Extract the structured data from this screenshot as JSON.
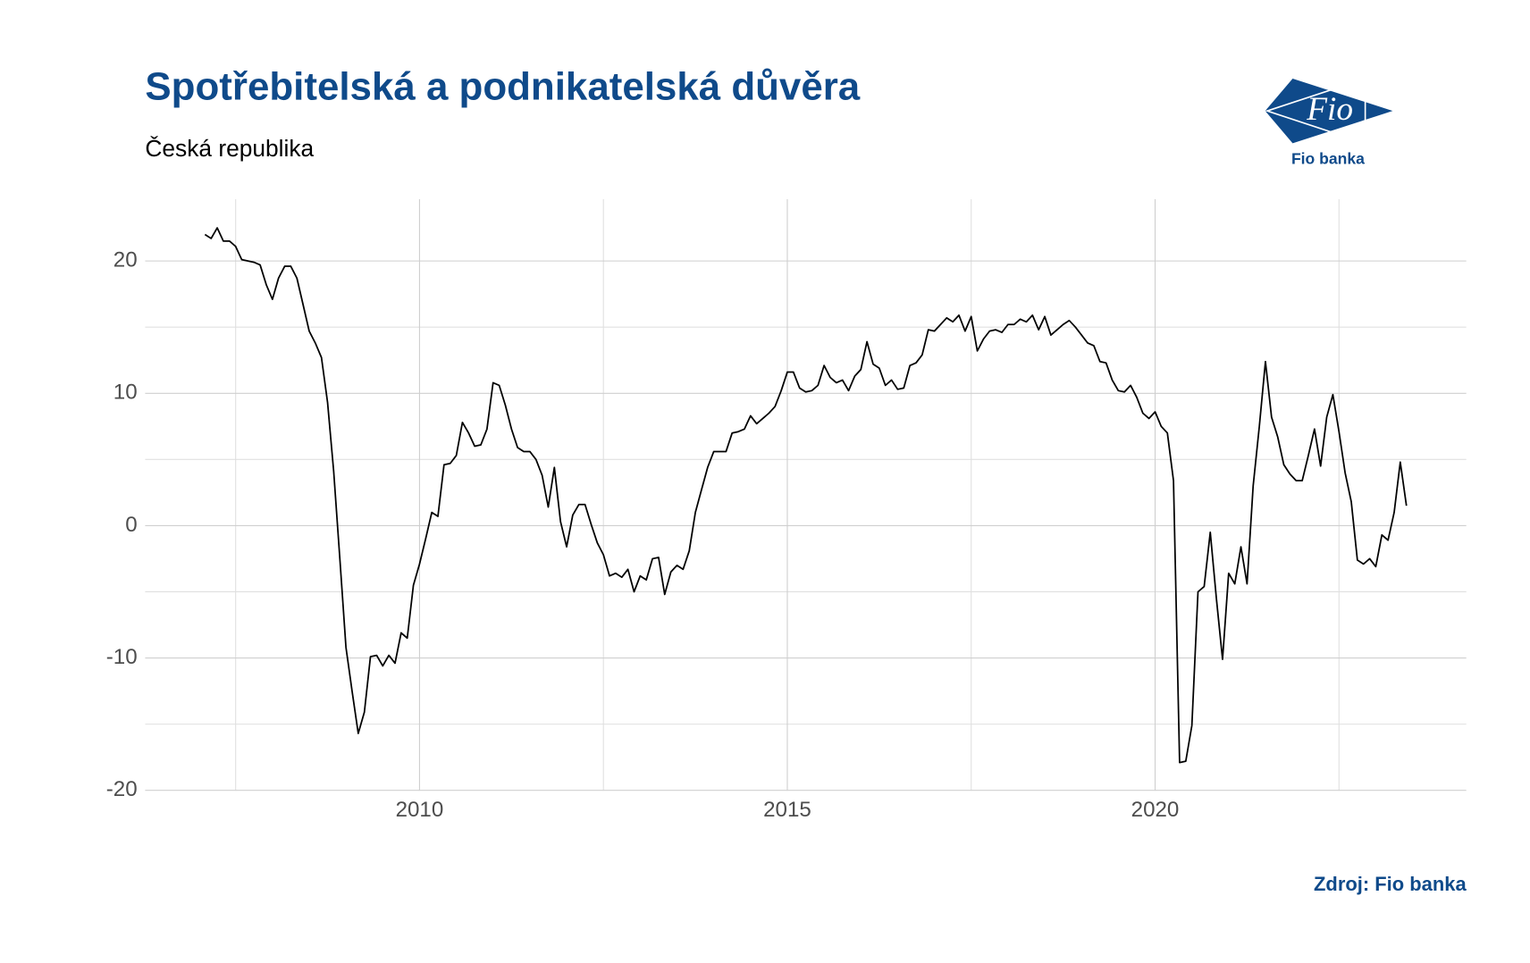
{
  "chart_data": {
    "type": "line",
    "title": "Spotřebitelská a podnikatelská důvěra",
    "subtitle": "Česká republika",
    "source": "Zdroj: Fio banka",
    "logo": {
      "mark": "Fio",
      "name": "Fio banka"
    },
    "color": "#000000",
    "grid": true,
    "xlim": [
      2006.27,
      2024.23
    ],
    "xticks": [
      2010,
      2015,
      2020
    ],
    "x_minor_ticks": [
      2007.5,
      2012.5,
      2017.5,
      2022.5
    ],
    "ylim": [
      -20,
      24.67
    ],
    "yticks": [
      -20,
      -10,
      0,
      10,
      20
    ],
    "y_minor_ticks": [
      -15,
      -5,
      5,
      15
    ],
    "x": [
      2007.083,
      2007.167,
      2007.25,
      2007.333,
      2007.417,
      2007.5,
      2007.583,
      2007.667,
      2007.75,
      2007.833,
      2007.917,
      2008,
      2008.083,
      2008.167,
      2008.25,
      2008.333,
      2008.417,
      2008.5,
      2008.583,
      2008.667,
      2008.75,
      2008.833,
      2008.917,
      2009,
      2009.083,
      2009.167,
      2009.25,
      2009.333,
      2009.417,
      2009.5,
      2009.583,
      2009.667,
      2009.75,
      2009.833,
      2009.917,
      2010,
      2010.083,
      2010.167,
      2010.25,
      2010.333,
      2010.417,
      2010.5,
      2010.583,
      2010.667,
      2010.75,
      2010.833,
      2010.917,
      2011,
      2011.083,
      2011.167,
      2011.25,
      2011.333,
      2011.417,
      2011.5,
      2011.583,
      2011.667,
      2011.75,
      2011.833,
      2011.917,
      2012,
      2012.083,
      2012.167,
      2012.25,
      2012.333,
      2012.417,
      2012.5,
      2012.583,
      2012.667,
      2012.75,
      2012.833,
      2012.917,
      2013,
      2013.083,
      2013.167,
      2013.25,
      2013.333,
      2013.417,
      2013.5,
      2013.583,
      2013.667,
      2013.75,
      2013.833,
      2013.917,
      2014,
      2014.083,
      2014.167,
      2014.25,
      2014.333,
      2014.417,
      2014.5,
      2014.583,
      2014.667,
      2014.75,
      2014.833,
      2014.917,
      2015,
      2015.083,
      2015.167,
      2015.25,
      2015.333,
      2015.417,
      2015.5,
      2015.583,
      2015.667,
      2015.75,
      2015.833,
      2015.917,
      2016,
      2016.083,
      2016.167,
      2016.25,
      2016.333,
      2016.417,
      2016.5,
      2016.583,
      2016.667,
      2016.75,
      2016.833,
      2016.917,
      2017,
      2017.083,
      2017.167,
      2017.25,
      2017.333,
      2017.417,
      2017.5,
      2017.583,
      2017.667,
      2017.75,
      2017.833,
      2017.917,
      2018,
      2018.083,
      2018.167,
      2018.25,
      2018.333,
      2018.417,
      2018.5,
      2018.583,
      2018.667,
      2018.75,
      2018.833,
      2018.917,
      2019,
      2019.083,
      2019.167,
      2019.25,
      2019.333,
      2019.417,
      2019.5,
      2019.583,
      2019.667,
      2019.75,
      2019.833,
      2019.917,
      2020,
      2020.083,
      2020.167,
      2020.25,
      2020.333,
      2020.417,
      2020.5,
      2020.583,
      2020.667,
      2020.75,
      2020.833,
      2020.917,
      2021,
      2021.083,
      2021.167,
      2021.25,
      2021.333,
      2021.417,
      2021.5,
      2021.583,
      2021.667,
      2021.75,
      2021.833,
      2021.917,
      2022,
      2022.083,
      2022.167,
      2022.25,
      2022.333,
      2022.417,
      2022.5,
      2022.583,
      2022.667,
      2022.75,
      2022.833,
      2022.917,
      2023,
      2023.083,
      2023.167,
      2023.25,
      2023.333,
      2023.417
    ],
    "values": [
      22.0,
      21.7,
      22.5,
      21.5,
      21.5,
      21.1,
      20.1,
      20.0,
      19.9,
      19.7,
      18.2,
      17.1,
      18.7,
      19.6,
      19.6,
      18.7,
      16.7,
      14.7,
      13.8,
      12.7,
      9.3,
      4.1,
      -2.5,
      -9.2,
      -12.5,
      -15.7,
      -14.1,
      -9.9,
      -9.8,
      -10.6,
      -9.8,
      -10.4,
      -8.1,
      -8.5,
      -4.5,
      -2.9,
      -1.0,
      1.0,
      0.7,
      4.6,
      4.7,
      5.3,
      7.8,
      7.0,
      6.0,
      6.1,
      7.3,
      10.8,
      10.6,
      9.1,
      7.3,
      5.9,
      5.6,
      5.6,
      5.0,
      3.8,
      1.4,
      4.4,
      0.3,
      -1.6,
      0.8,
      1.6,
      1.6,
      0.1,
      -1.3,
      -2.2,
      -3.8,
      -3.6,
      -3.9,
      -3.3,
      -5.0,
      -3.8,
      -4.1,
      -2.5,
      -2.4,
      -5.2,
      -3.5,
      -3.0,
      -3.3,
      -1.9,
      1.0,
      2.7,
      4.4,
      5.6,
      5.6,
      5.6,
      7.0,
      7.1,
      7.3,
      8.3,
      7.7,
      8.1,
      8.5,
      9.0,
      10.2,
      11.6,
      11.6,
      10.4,
      10.1,
      10.2,
      10.6,
      12.1,
      11.2,
      10.8,
      11.0,
      10.2,
      11.3,
      11.8,
      13.9,
      12.2,
      11.9,
      10.6,
      11.0,
      10.3,
      10.4,
      12.1,
      12.3,
      12.9,
      14.8,
      14.7,
      15.2,
      15.7,
      15.4,
      15.9,
      14.7,
      15.8,
      13.2,
      14.1,
      14.7,
      14.8,
      14.6,
      15.2,
      15.2,
      15.6,
      15.4,
      15.9,
      14.8,
      15.8,
      14.4,
      14.8,
      15.2,
      15.5,
      15.0,
      14.4,
      13.8,
      13.6,
      12.4,
      12.3,
      11.0,
      10.2,
      10.1,
      10.6,
      9.7,
      8.5,
      8.1,
      8.6,
      7.5,
      7.0,
      3.4,
      -17.9,
      -17.8,
      -15.1,
      -5.0,
      -4.6,
      -0.5,
      -5.5,
      -10.1,
      -3.6,
      -4.4,
      -1.6,
      -4.4,
      3.0,
      7.5,
      12.4,
      8.2,
      6.7,
      4.6,
      3.9,
      3.4,
      3.4,
      5.3,
      7.3,
      4.5,
      8.2,
      9.9,
      7.1,
      4.0,
      1.8,
      -2.6,
      -2.9,
      -2.5,
      -3.1,
      -0.7,
      -1.1,
      1.0,
      4.8,
      1.5
    ]
  }
}
